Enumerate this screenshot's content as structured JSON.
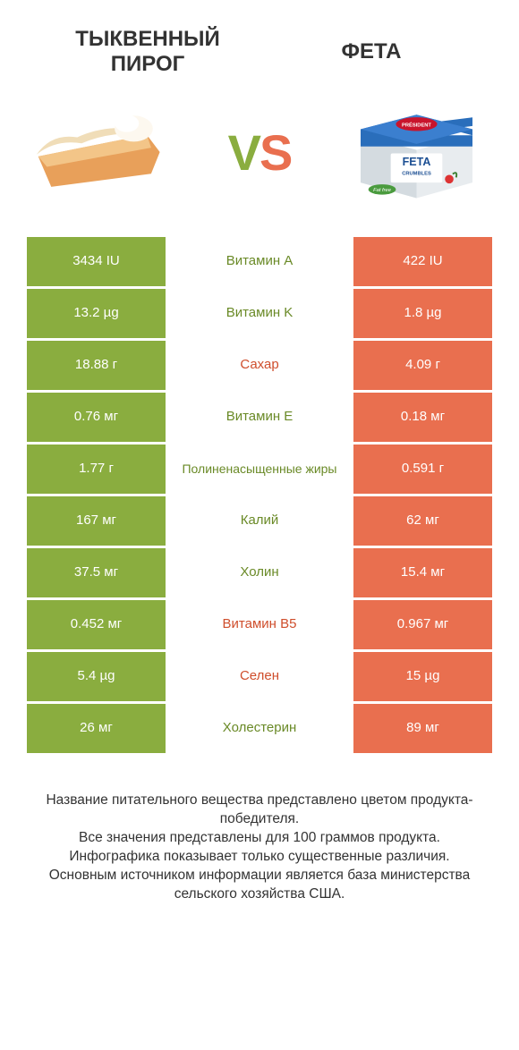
{
  "colors": {
    "green": "#8aad3f",
    "red": "#e96f4f",
    "midGreenText": "#6a8a27",
    "midRedText": "#cf4e2c",
    "bg": "#ffffff",
    "text": "#333333"
  },
  "left_title": "ТЫКВЕННЫЙ\nПИРОГ",
  "right_title": "ФЕТА",
  "vs_v": "V",
  "vs_s": "S",
  "rows": [
    {
      "left": "3434 IU",
      "mid": "Витамин A",
      "right": "422 IU",
      "winner": "left"
    },
    {
      "left": "13.2 µg",
      "mid": "Витамин K",
      "right": "1.8 µg",
      "winner": "left"
    },
    {
      "left": "18.88 г",
      "mid": "Сахар",
      "right": "4.09 г",
      "winner": "right"
    },
    {
      "left": "0.76 мг",
      "mid": "Витамин E",
      "right": "0.18 мг",
      "winner": "left"
    },
    {
      "left": "1.77 г",
      "mid": "Полиненасыщенные жиры",
      "right": "0.591 г",
      "winner": "left"
    },
    {
      "left": "167 мг",
      "mid": "Калий",
      "right": "62 мг",
      "winner": "left"
    },
    {
      "left": "37.5 мг",
      "mid": "Холин",
      "right": "15.4 мг",
      "winner": "left"
    },
    {
      "left": "0.452 мг",
      "mid": "Витамин B5",
      "right": "0.967 мг",
      "winner": "right"
    },
    {
      "left": "5.4 µg",
      "mid": "Селен",
      "right": "15 µg",
      "winner": "right"
    },
    {
      "left": "26 мг",
      "mid": "Холестерин",
      "right": "89 мг",
      "winner": "left"
    }
  ],
  "footer_lines": [
    "Название питательного вещества представлено цветом продукта-победителя.",
    "Все значения представлены для 100 граммов продукта.",
    "Инфографика показывает только существенные различия.",
    "Основным источником информации является база министерства сельского хозяйства США."
  ]
}
